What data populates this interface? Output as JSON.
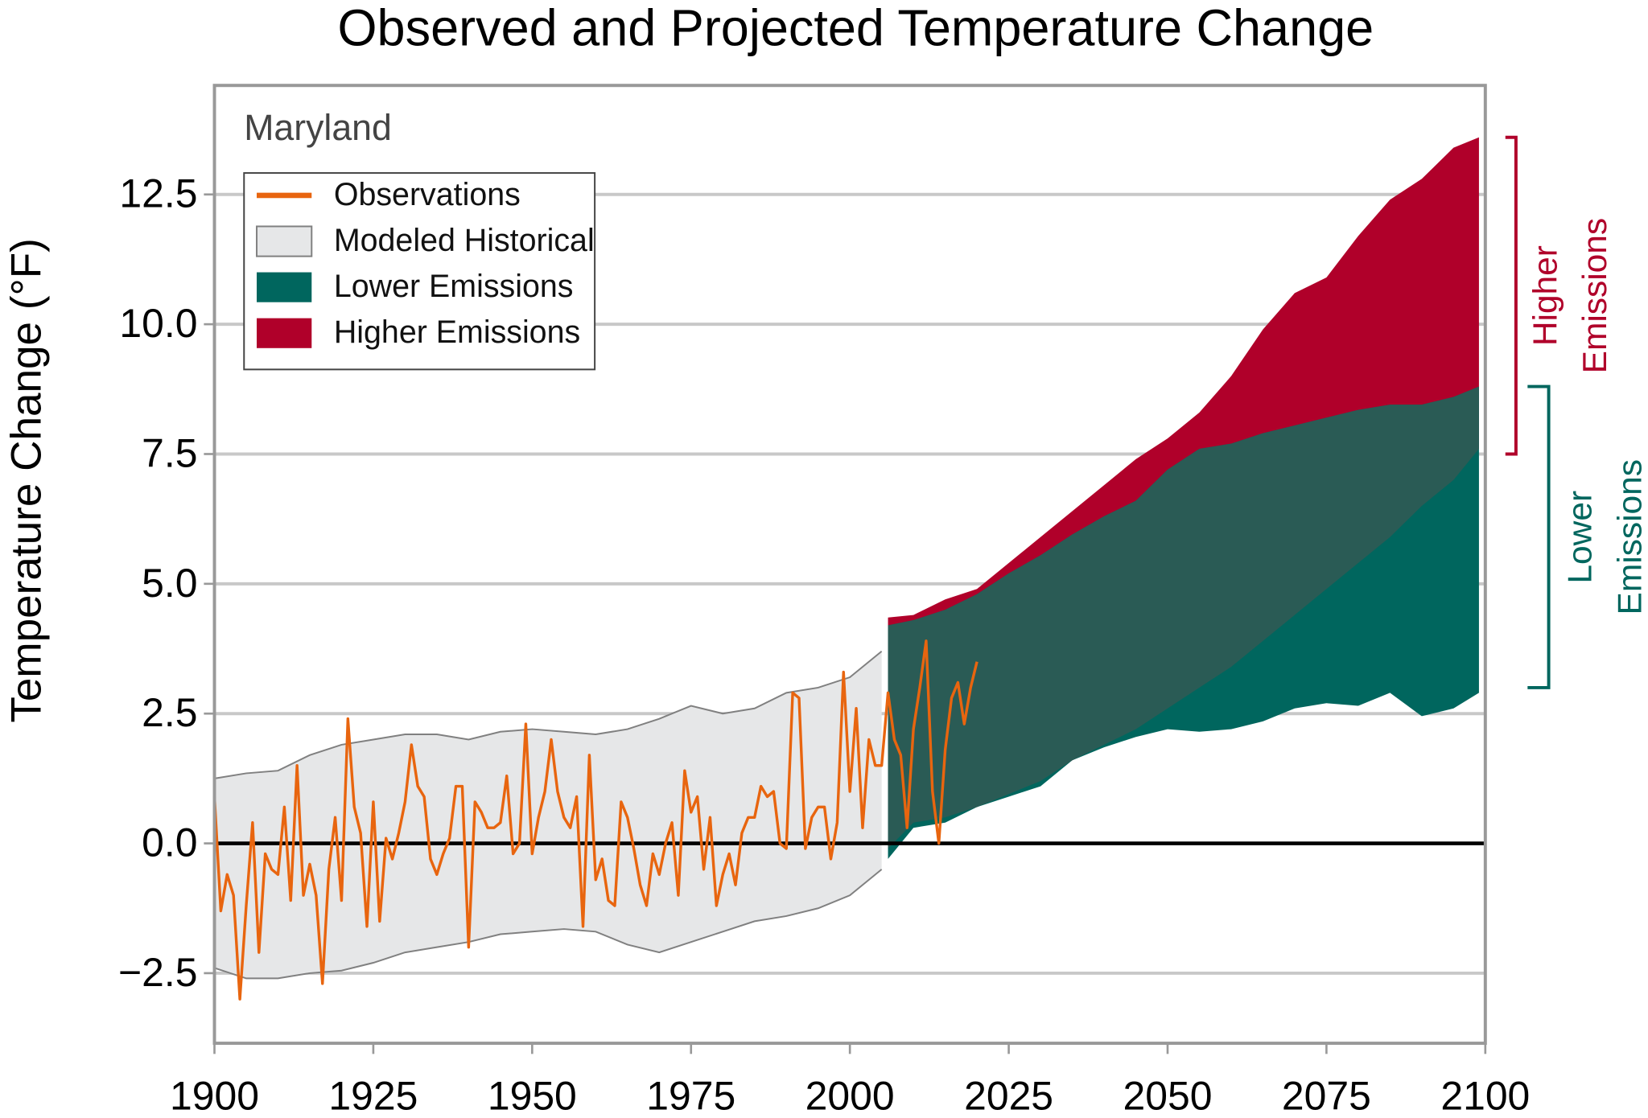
{
  "chart_data": {
    "type": "line",
    "title": "Observed and Projected Temperature Change",
    "ylabel": "Temperature Change (°F)",
    "annotation": "Maryland",
    "xlim": [
      1900,
      2100
    ],
    "xticks": [
      1900,
      1925,
      1950,
      1975,
      2000,
      2025,
      2050,
      2075,
      2100
    ],
    "ylim": [
      -3.85,
      14.6
    ],
    "yticks": [
      {
        "value": -2.5,
        "label": "−2.5"
      },
      {
        "value": 0,
        "label": "0.0"
      },
      2.5,
      {
        "value": 5,
        "label": "5.0"
      },
      7.5,
      {
        "value": 10,
        "label": "10.0"
      },
      12.5
    ],
    "grid": true,
    "reference_line": {
      "value": 0,
      "color": "#000000"
    },
    "overlap_color": "#2a5b55",
    "series": [
      {
        "name": "Observations",
        "color": "#e8650f",
        "x": [
          1900,
          1901,
          1902,
          1903,
          1904,
          1905,
          1906,
          1907,
          1908,
          1909,
          1910,
          1911,
          1912,
          1913,
          1914,
          1915,
          1916,
          1917,
          1918,
          1919,
          1920,
          1921,
          1922,
          1923,
          1924,
          1925,
          1926,
          1927,
          1928,
          1929,
          1930,
          1931,
          1932,
          1933,
          1934,
          1935,
          1936,
          1937,
          1938,
          1939,
          1940,
          1941,
          1942,
          1943,
          1944,
          1945,
          1946,
          1947,
          1948,
          1949,
          1950,
          1951,
          1952,
          1953,
          1954,
          1955,
          1956,
          1957,
          1958,
          1959,
          1960,
          1961,
          1962,
          1963,
          1964,
          1965,
          1966,
          1967,
          1968,
          1969,
          1970,
          1971,
          1972,
          1973,
          1974,
          1975,
          1976,
          1977,
          1978,
          1979,
          1980,
          1981,
          1982,
          1983,
          1984,
          1985,
          1986,
          1987,
          1988,
          1989,
          1990,
          1991,
          1992,
          1993,
          1994,
          1995,
          1996,
          1997,
          1998,
          1999,
          2000,
          2001,
          2002,
          2003,
          2004,
          2005,
          2006,
          2007,
          2008,
          2009,
          2010,
          2011,
          2012,
          2013,
          2014,
          2015,
          2016,
          2017,
          2018,
          2019,
          2020
        ],
        "values": [
          0.9,
          -1.3,
          -0.6,
          -1.0,
          -3.0,
          -1.2,
          0.4,
          -2.1,
          -0.2,
          -0.5,
          -0.6,
          0.7,
          -1.1,
          1.5,
          -1.0,
          -0.4,
          -1.0,
          -2.7,
          -0.5,
          0.5,
          -1.1,
          2.4,
          0.7,
          0.2,
          -1.6,
          0.8,
          -1.5,
          0.1,
          -0.3,
          0.2,
          0.8,
          1.9,
          1.1,
          0.9,
          -0.3,
          -0.6,
          -0.2,
          0.1,
          1.1,
          1.1,
          -2.0,
          0.8,
          0.6,
          0.3,
          0.3,
          0.4,
          1.3,
          -0.2,
          0.0,
          2.3,
          -0.2,
          0.5,
          1.0,
          2.0,
          1.0,
          0.5,
          0.3,
          0.9,
          -1.6,
          1.7,
          -0.7,
          -0.3,
          -1.1,
          -1.2,
          0.8,
          0.5,
          -0.1,
          -0.8,
          -1.2,
          -0.2,
          -0.6,
          0.0,
          0.4,
          -1.0,
          1.4,
          0.6,
          0.9,
          -0.5,
          0.5,
          -1.2,
          -0.6,
          -0.2,
          -0.8,
          0.2,
          0.5,
          0.5,
          1.1,
          0.9,
          1.0,
          0.0,
          -0.1,
          2.9,
          2.8,
          -0.1,
          0.5,
          0.7,
          0.7,
          -0.3,
          0.4,
          3.3,
          1.0,
          2.6,
          0.3,
          2.0,
          1.5,
          1.5,
          2.9,
          2.0,
          1.7,
          0.3,
          2.2,
          3.0,
          3.9,
          1.0,
          0.0,
          1.8,
          2.8,
          3.1,
          2.3,
          3.0,
          3.5
        ]
      }
    ],
    "bands": [
      {
        "name": "Modeled Historical",
        "color": "#e6e7e8",
        "edge_color": "#808080",
        "x": [
          1900,
          1905,
          1910,
          1915,
          1920,
          1925,
          1930,
          1935,
          1940,
          1945,
          1950,
          1955,
          1960,
          1965,
          1970,
          1975,
          1980,
          1985,
          1990,
          1995,
          2000,
          2005
        ],
        "lower": [
          -2.4,
          -2.6,
          -2.6,
          -2.5,
          -2.45,
          -2.3,
          -2.1,
          -2.0,
          -1.9,
          -1.75,
          -1.7,
          -1.65,
          -1.7,
          -1.95,
          -2.1,
          -1.9,
          -1.7,
          -1.5,
          -1.4,
          -1.25,
          -1.0,
          -0.5
        ],
        "upper": [
          1.25,
          1.35,
          1.4,
          1.7,
          1.9,
          2.0,
          2.1,
          2.1,
          2.0,
          2.15,
          2.2,
          2.15,
          2.1,
          2.2,
          2.4,
          2.65,
          2.5,
          2.6,
          2.9,
          3.0,
          3.2,
          3.7
        ]
      },
      {
        "name": "Lower Emissions",
        "color": "#00665e",
        "x": [
          2006,
          2010,
          2015,
          2020,
          2025,
          2030,
          2035,
          2040,
          2045,
          2050,
          2055,
          2060,
          2065,
          2070,
          2075,
          2080,
          2085,
          2090,
          2095,
          2099
        ],
        "lower": [
          -0.3,
          0.3,
          0.4,
          0.7,
          0.9,
          1.1,
          1.6,
          1.85,
          2.05,
          2.2,
          2.15,
          2.2,
          2.35,
          2.6,
          2.7,
          2.65,
          2.9,
          2.45,
          2.6,
          2.9
        ],
        "upper": [
          4.2,
          4.3,
          4.5,
          4.8,
          5.2,
          5.55,
          5.95,
          6.3,
          6.6,
          7.2,
          7.6,
          7.7,
          7.9,
          8.05,
          8.2,
          8.35,
          8.45,
          8.45,
          8.6,
          8.8
        ]
      },
      {
        "name": "Higher Emissions",
        "color": "#b0002a",
        "x": [
          2006,
          2010,
          2015,
          2020,
          2025,
          2030,
          2035,
          2040,
          2045,
          2050,
          2055,
          2060,
          2065,
          2070,
          2075,
          2080,
          2085,
          2090,
          2095,
          2099
        ],
        "lower": [
          -0.1,
          0.4,
          0.5,
          0.7,
          0.95,
          1.2,
          1.6,
          1.9,
          2.2,
          2.6,
          3.0,
          3.4,
          3.9,
          4.4,
          4.9,
          5.4,
          5.9,
          6.5,
          7.0,
          7.6
        ],
        "upper": [
          4.35,
          4.4,
          4.7,
          4.9,
          5.4,
          5.9,
          6.4,
          6.9,
          7.4,
          7.8,
          8.3,
          9.0,
          9.9,
          10.6,
          10.9,
          11.7,
          12.4,
          12.8,
          13.4,
          13.6
        ]
      }
    ],
    "brackets": [
      {
        "lines": [
          "Higher",
          "Emissions"
        ],
        "color": "#b0002a",
        "range": [
          7.5,
          13.6
        ]
      },
      {
        "lines": [
          "Lower",
          "Emissions"
        ],
        "color": "#00665e",
        "range": [
          3.0,
          8.8
        ]
      }
    ]
  }
}
